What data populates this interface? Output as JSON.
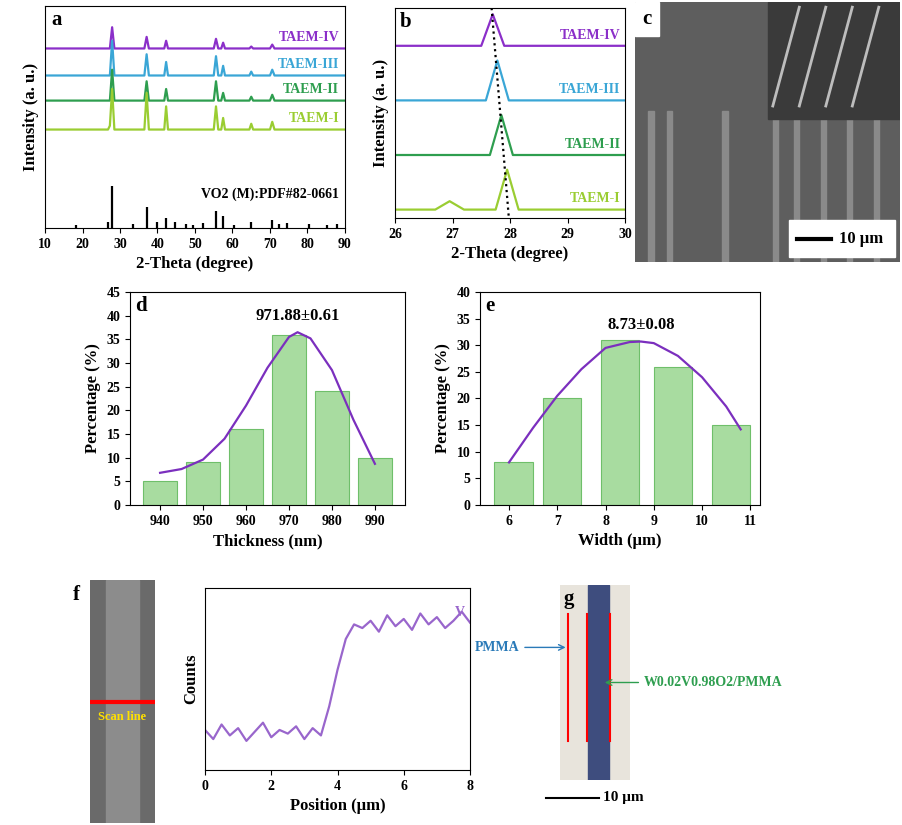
{
  "chart_data": [
    {
      "type": "line",
      "title": "a",
      "xlabel": "2-Theta (degree)",
      "ylabel": "Intensity (a. u.)",
      "xlim": [
        10,
        90
      ],
      "xticks": [
        10,
        20,
        30,
        40,
        50,
        60,
        70,
        80,
        90
      ],
      "ylim": [
        0,
        115
      ],
      "yticks": [],
      "tick_labels": "x",
      "x": [
        10,
        26.8,
        27.3,
        27.9,
        28.5,
        36.5,
        37.1,
        37.7,
        41.8,
        42.3,
        42.8,
        55.0,
        55.6,
        56.2,
        57.0,
        57.5,
        58.0,
        64.5,
        65.0,
        65.5,
        70.0,
        70.6,
        71.2,
        90
      ],
      "series": [
        {
          "name": "TAEM-IV",
          "color": "#8b2fc9",
          "values": [
            93,
            93,
            93,
            104,
            93,
            93,
            99,
            93,
            93,
            97,
            93,
            93,
            98,
            93,
            93,
            96,
            93,
            93,
            94,
            93,
            93,
            95,
            93,
            93
          ]
        },
        {
          "name": "TAEM-III",
          "color": "#3aa6d6",
          "values": [
            79,
            79,
            79,
            97,
            79,
            79,
            90,
            79,
            79,
            86,
            79,
            79,
            89,
            79,
            79,
            84,
            79,
            79,
            81,
            79,
            79,
            82,
            79,
            79
          ]
        },
        {
          "name": "TAEM-II",
          "color": "#2e9e4f",
          "values": [
            66,
            66,
            66,
            82,
            66,
            66,
            76,
            66,
            66,
            72,
            66,
            66,
            76,
            66,
            66,
            70,
            66,
            66,
            68,
            66,
            66,
            69,
            66,
            66
          ]
        },
        {
          "name": "TAEM-I",
          "color": "#9acd32",
          "values": [
            51,
            51,
            53,
            72,
            51,
            51,
            70,
            51,
            51,
            63,
            51,
            51,
            63,
            51,
            51,
            57,
            51,
            51,
            54,
            51,
            51,
            55,
            51,
            51
          ]
        },
        {
          "name": "VO2 (M):PDF#82-0661",
          "type": "stem",
          "color": "#000000",
          "x": [
            18.3,
            26.9,
            27.9,
            33.4,
            37.1,
            39.8,
            42.3,
            44.6,
            47.5,
            49.5,
            52.2,
            55.6,
            57.5,
            60.5,
            65.0,
            70.4,
            72.5,
            74.4,
            80.5,
            85.2,
            88
          ],
          "values": [
            1.5,
            3,
            22,
            2,
            11,
            3,
            5,
            3,
            2,
            1.5,
            2.5,
            9,
            6,
            1.5,
            3,
            4,
            2,
            2.5,
            2,
            1.5,
            2
          ]
        }
      ]
    },
    {
      "type": "line",
      "title": "b",
      "xlabel": "2-Theta (degree)",
      "ylabel": "Intensity (a. u.)",
      "xlim": [
        26,
        30
      ],
      "xticks": [
        26,
        27,
        28,
        29,
        30
      ],
      "ylim": [
        0,
        100
      ],
      "yticks": [],
      "tick_labels": "x",
      "series": [
        {
          "name": "TAEM-IV",
          "color": "#8b2fc9",
          "x": [
            26,
            27.5,
            27.7,
            27.9,
            30
          ],
          "values": [
            82,
            82,
            97,
            82,
            82
          ]
        },
        {
          "name": "TAEM-III",
          "color": "#3aa6d6",
          "x": [
            26,
            27.58,
            27.78,
            27.98,
            30
          ],
          "values": [
            56,
            56,
            75,
            56,
            56
          ]
        },
        {
          "name": "TAEM-II",
          "color": "#2e9e4f",
          "x": [
            26,
            27.65,
            27.85,
            28.05,
            30
          ],
          "values": [
            30,
            30,
            49,
            30,
            30
          ]
        },
        {
          "name": "TAEM-I",
          "color": "#9acd32",
          "x": [
            26,
            26.7,
            26.95,
            27.2,
            27.75,
            27.95,
            28.15,
            30
          ],
          "values": [
            4,
            4,
            8,
            4,
            4,
            23,
            4,
            4
          ]
        },
        {
          "color": "#000000",
          "line_style": "dotted",
          "x": [
            27.68,
            27.98
          ],
          "values": [
            100,
            0
          ]
        }
      ]
    },
    {
      "type": "bar",
      "title": "d",
      "xlabel": "Thickness (nm)",
      "ylabel": "Percentage (%)",
      "annotations": [
        "971.88±0.61"
      ],
      "xlim": [
        933,
        997
      ],
      "xticks": [
        940,
        950,
        960,
        970,
        980,
        990
      ],
      "ylim": [
        0,
        45
      ],
      "yticks": [
        0,
        5,
        10,
        15,
        20,
        25,
        30,
        35,
        40,
        45
      ],
      "series": [
        {
          "color": "#a8dca0",
          "x": [
            940,
            950,
            960,
            970,
            980,
            990
          ],
          "values": [
            5,
            9,
            16,
            36,
            24,
            10
          ]
        },
        {
          "type": "line",
          "color": "#7b2fbe",
          "x": [
            940,
            945,
            950,
            955,
            960,
            965,
            970,
            972,
            975,
            980,
            985,
            990
          ],
          "values": [
            6.8,
            7.6,
            9.6,
            14,
            21,
            29,
            35.5,
            36.5,
            35.2,
            28.5,
            18,
            8.7
          ]
        }
      ]
    },
    {
      "type": "bar",
      "title": "e",
      "xlabel": "Width (μm)",
      "ylabel": "Percentage (%)",
      "annotations": [
        "8.73±0.08"
      ],
      "xlim": [
        5.4,
        11.2
      ],
      "xticks": [
        6,
        7,
        8,
        9,
        10,
        11
      ],
      "ylim": [
        0,
        40
      ],
      "yticks": [
        0,
        5,
        10,
        15,
        20,
        25,
        30,
        35,
        40
      ],
      "series": [
        {
          "color": "#a8dca0",
          "x": [
            6.1,
            7.1,
            8.3,
            9.4,
            10.6
          ],
          "values": [
            8,
            20,
            31,
            26,
            15
          ]
        },
        {
          "type": "line",
          "color": "#7b2fbe",
          "x": [
            6,
            6.5,
            7,
            7.5,
            8,
            8.5,
            8.73,
            9,
            9.5,
            10,
            10.5,
            10.8
          ],
          "values": [
            8,
            14.5,
            20.5,
            25.5,
            29.5,
            30.6,
            30.7,
            30.4,
            28,
            24,
            18.5,
            14.2
          ]
        }
      ]
    },
    {
      "type": "line",
      "xlabel": "Position (μm)",
      "ylabel": "Counts",
      "xlim": [
        0,
        8
      ],
      "xticks": [
        0,
        2,
        4,
        6,
        8
      ],
      "ylim": [
        0,
        100
      ],
      "yticks": [],
      "tick_labels": "x",
      "series": [
        {
          "name": "V",
          "color": "#9966cc",
          "x": [
            0,
            0.25,
            0.5,
            0.75,
            1.0,
            1.25,
            1.5,
            1.75,
            2.0,
            2.25,
            2.5,
            2.75,
            3.0,
            3.25,
            3.5,
            3.75,
            4.0,
            4.25,
            4.5,
            4.75,
            5.0,
            5.25,
            5.5,
            5.75,
            6.0,
            6.25,
            6.5,
            6.75,
            7.0,
            7.25,
            7.5,
            7.75,
            8.0
          ],
          "values": [
            22,
            17,
            25,
            19,
            23,
            16,
            21,
            26,
            18,
            22,
            20,
            24,
            17,
            23,
            19,
            35,
            55,
            72,
            80,
            78,
            82,
            76,
            85,
            79,
            83,
            77,
            86,
            80,
            84,
            78,
            82,
            87,
            81
          ]
        }
      ]
    }
  ],
  "images": [
    {
      "title": "c",
      "scale_bar": "10 μm"
    },
    {
      "title": "f",
      "texts": [
        "Scan line"
      ]
    },
    {
      "title": "g",
      "texts": [
        "PMMA",
        "W0.02V0.98O2/PMMA"
      ],
      "scale_bar": "10 μm"
    }
  ]
}
